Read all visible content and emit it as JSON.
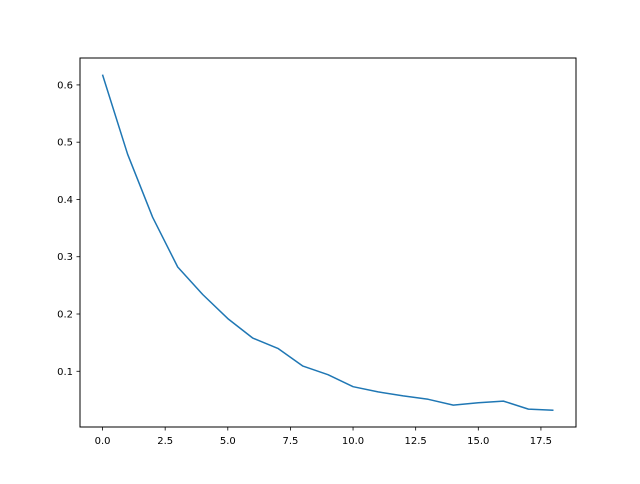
{
  "chart_data": {
    "type": "line",
    "title": "",
    "xlabel": "",
    "ylabel": "",
    "xlim": [
      -0.9,
      18.9
    ],
    "ylim": [
      0.0027,
      0.647
    ],
    "grid": false,
    "x_ticks": [
      0,
      2.5,
      5,
      7.5,
      10,
      12.5,
      15,
      17.5
    ],
    "x_tick_labels": [
      "0.0",
      "2.5",
      "5.0",
      "7.5",
      "10.0",
      "12.5",
      "15.0",
      "17.5"
    ],
    "y_ticks": [
      0.1,
      0.2,
      0.3,
      0.4,
      0.5,
      0.6
    ],
    "y_tick_labels": [
      "0.1",
      "0.2",
      "0.3",
      "0.4",
      "0.5",
      "0.6"
    ],
    "series": [
      {
        "color": "#1f77b4",
        "x": [
          0,
          1,
          2,
          3,
          4,
          5,
          6,
          7,
          8,
          9,
          10,
          11,
          12,
          13,
          14,
          15,
          16,
          17,
          18
        ],
        "y": [
          0.618,
          0.479,
          0.369,
          0.282,
          0.234,
          0.192,
          0.158,
          0.14,
          0.109,
          0.094,
          0.073,
          0.064,
          0.057,
          0.051,
          0.041,
          0.045,
          0.048,
          0.034,
          0.032
        ]
      }
    ]
  }
}
